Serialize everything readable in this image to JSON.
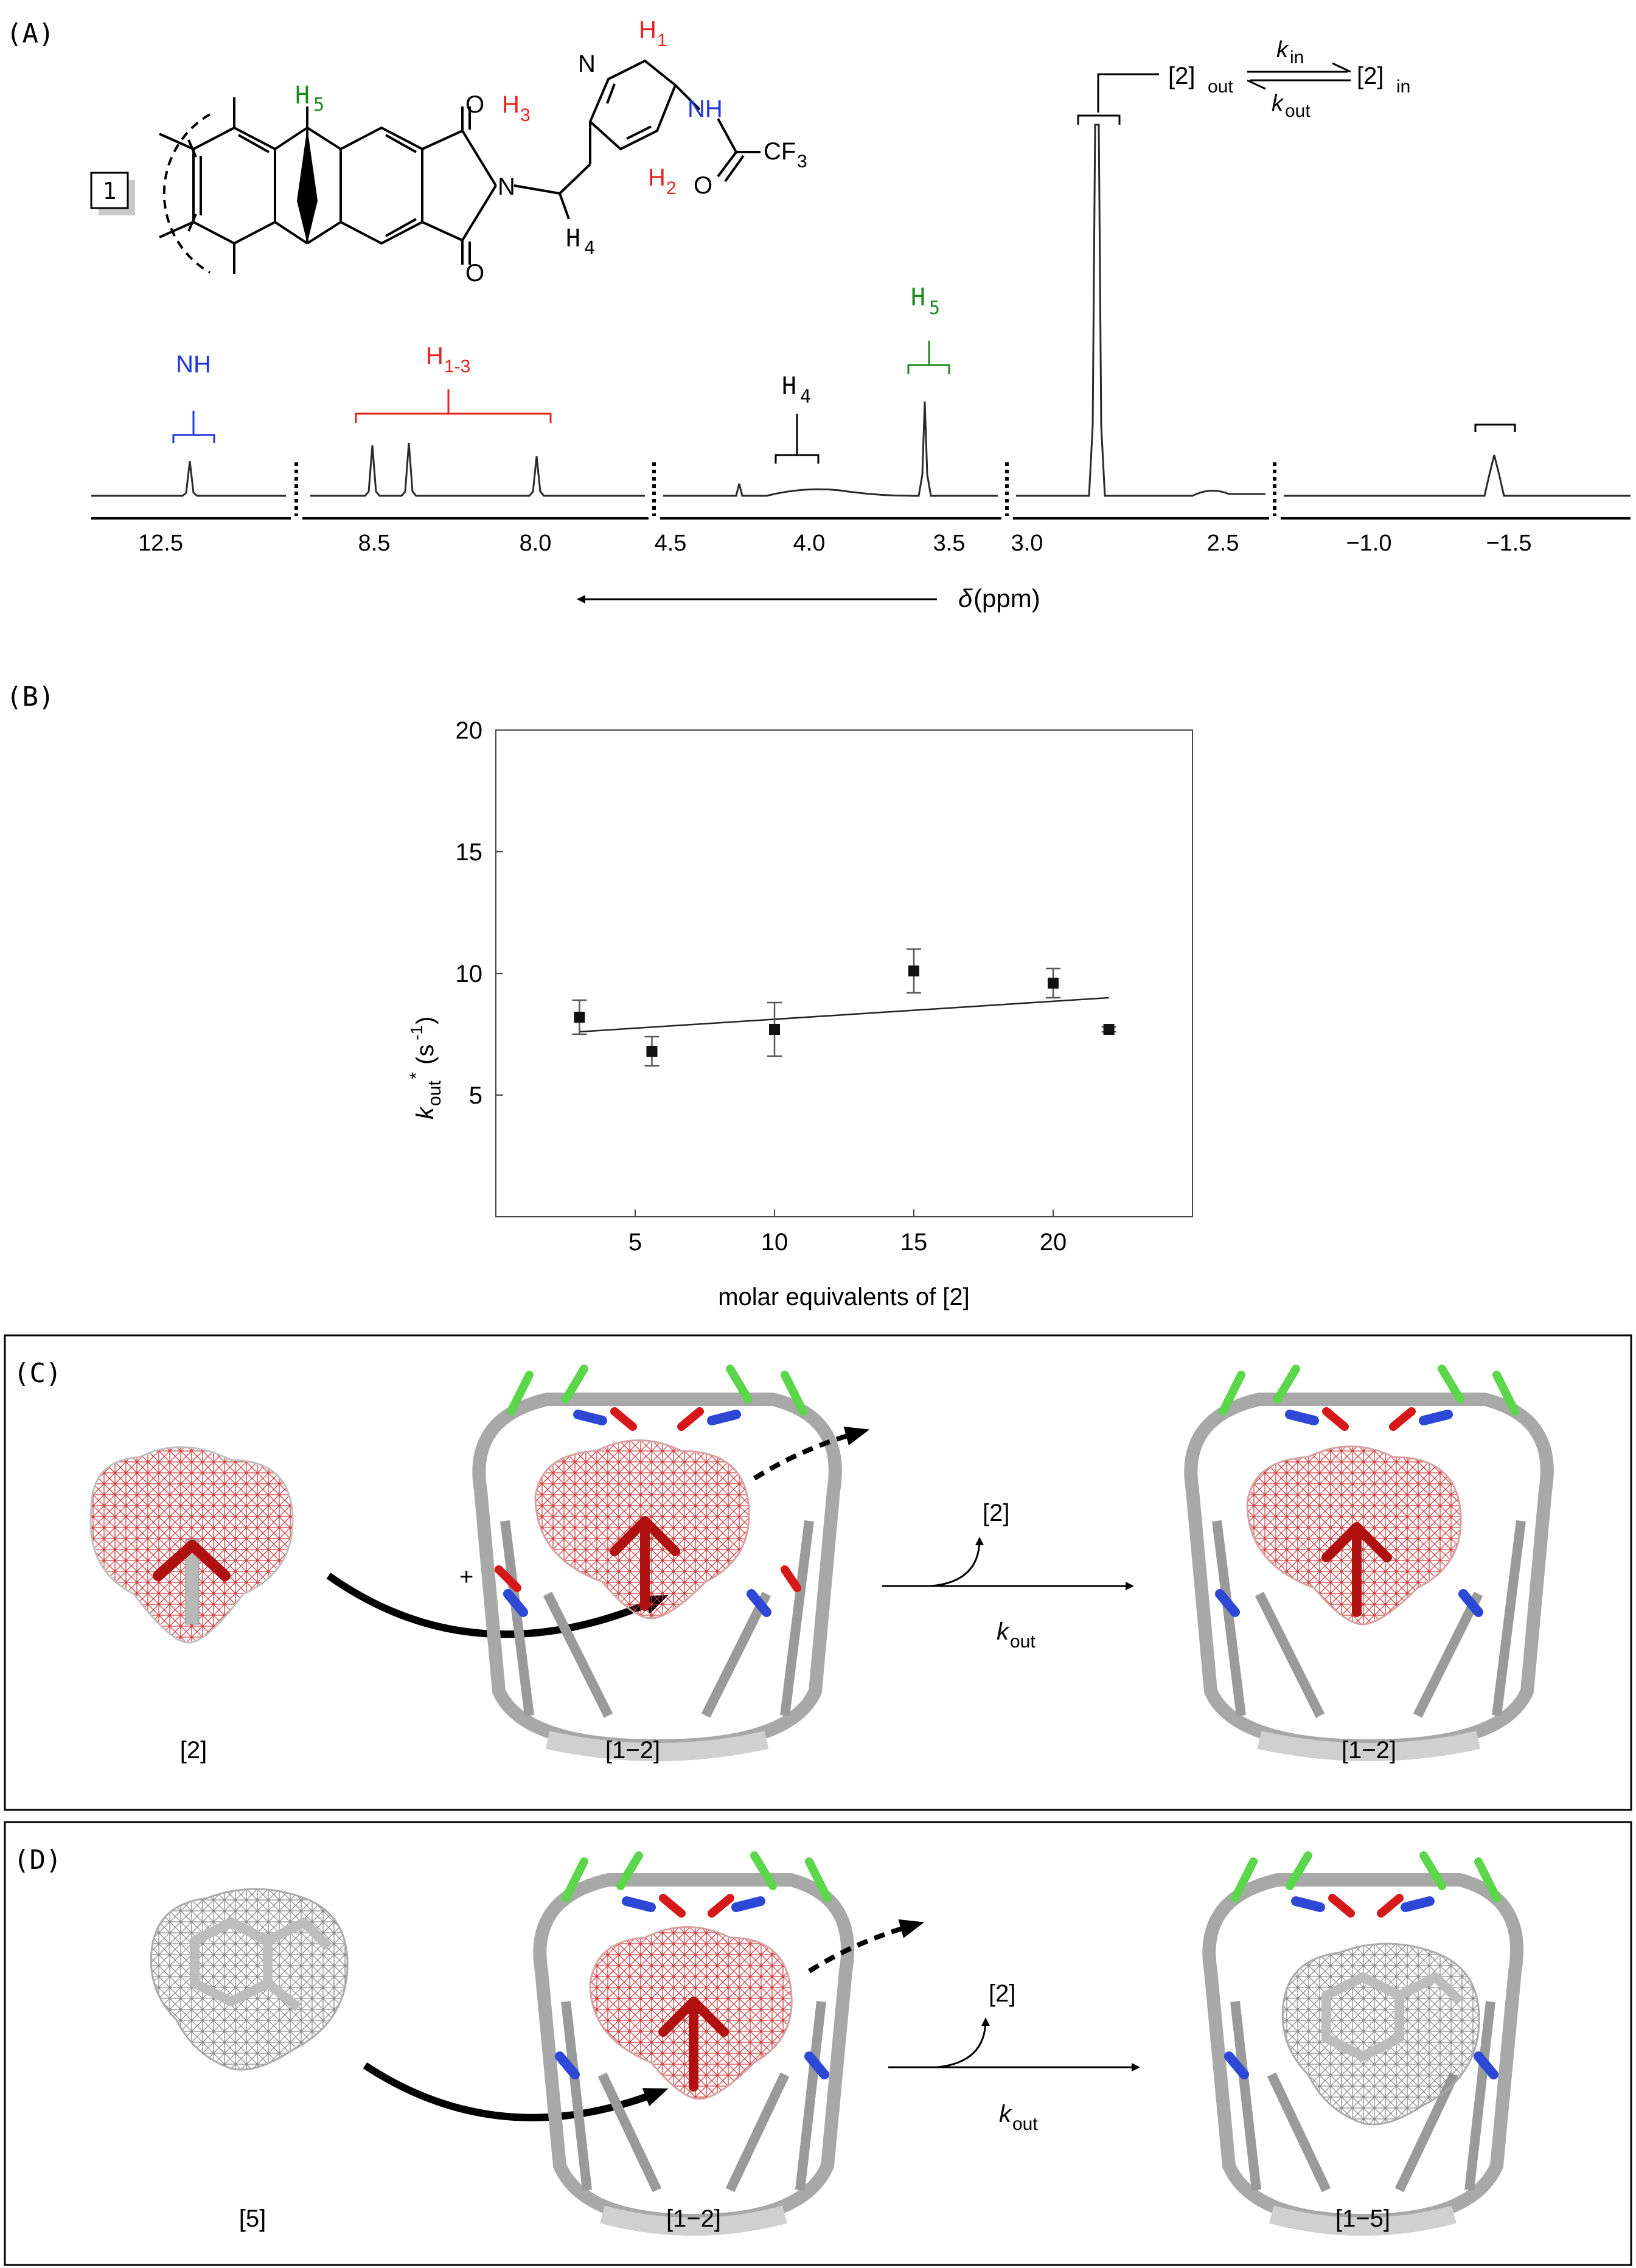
{
  "colors": {
    "red": "#e8221e",
    "green": "#1d8a1d",
    "blue": "#1f37d6",
    "mesh": "#d03a3a",
    "grey": "#9a9a9a"
  },
  "panelA": {
    "label": "(A)",
    "compound": "1",
    "atoms": {
      "H5": "H",
      "H5_sub": "5",
      "H4": "H",
      "H4_sub": "4",
      "H1": "H",
      "H1_sub": "1",
      "H2": "H",
      "H2_sub": "2",
      "H3": "H",
      "H3_sub": "3",
      "N": "N",
      "NH": "NH",
      "O": "O",
      "CF": "CF",
      "CF_sub": "3"
    },
    "equilibrium": {
      "left": "[2]",
      "left_sub": "out",
      "right": "[2]",
      "right_sub": "in",
      "k_forward": "k",
      "k_forward_sub": "in",
      "k_back": "k",
      "k_back_sub": "out"
    },
    "peak_labels": {
      "nh": "NH",
      "h13": "H",
      "h13_sub": "1-3",
      "h4": "H",
      "h4_sub": "4",
      "h5": "H",
      "h5_sub": "5"
    },
    "ticks": [
      "12.5",
      "8.5",
      "8.0",
      "4.5",
      "4.0",
      "3.5",
      "3.0",
      "2.5",
      "−1.0",
      "−1.5"
    ],
    "axis_label_delta": "δ",
    "axis_label_unit": "(ppm)"
  },
  "panelB": {
    "label": "(B)",
    "chart_data": {
      "type": "scatter",
      "title": "",
      "xlabel": "molar equivalents of [2]",
      "ylabel": "k_out* (s^-1)",
      "xlim": [
        0,
        25
      ],
      "ylim": [
        0,
        20
      ],
      "x_ticks": [
        "5",
        "10",
        "15",
        "20"
      ],
      "y_ticks": [
        "5",
        "10",
        "15",
        "20"
      ],
      "points": [
        {
          "x": 3,
          "y": 8.2,
          "err": 0.7
        },
        {
          "x": 5.6,
          "y": 6.8,
          "err": 0.6
        },
        {
          "x": 10,
          "y": 7.7,
          "err": 1.1
        },
        {
          "x": 15,
          "y": 10.1,
          "err": 0.9
        },
        {
          "x": 20,
          "y": 9.6,
          "err": 0.6
        },
        {
          "x": 22,
          "y": 7.7,
          "err": 0.1
        }
      ],
      "fit_line": {
        "x": [
          3,
          22
        ],
        "y": [
          7.6,
          9.0
        ]
      }
    },
    "ylabel_k": "k",
    "ylabel_sub": "out",
    "ylabel_sup": "*",
    "ylabel_unit": "(s",
    "ylabel_unit_sup": "-1",
    "ylabel_close": ")"
  },
  "panelC": {
    "label": "(C)",
    "plus": "+",
    "released": "[2]",
    "rate_k": "k",
    "rate_sub": "out",
    "captions": [
      "[2]",
      "[1−2]",
      "[1−2]"
    ]
  },
  "panelD": {
    "label": "(D)",
    "released": "[2]",
    "rate_k": "k",
    "rate_sub": "out",
    "captions": [
      "[5]",
      "[1−2]",
      "[1−5]"
    ]
  }
}
